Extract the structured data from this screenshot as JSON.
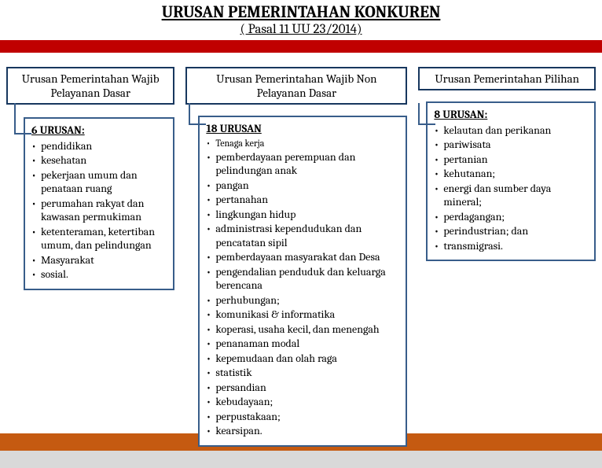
{
  "title": "URUSAN PEMERINTAHAN KONKUREN",
  "subtitle": "( Pasal 11 UU 23/2014)",
  "colors": {
    "header_border": "#17375e",
    "box_border": "#385d8a",
    "red_bar": "#c00000",
    "footer_orange": "#c55a11",
    "footer_grey": "#d9d9d9"
  },
  "columns": [
    {
      "header": "Urusan Pemerintahan Wajib Pelayanan Dasar",
      "heading": "6 URUSAN:",
      "items": [
        "pendidikan",
        "kesehatan",
        "pekerjaan umum dan penataan ruang",
        "perumahan rakyat dan kawasan permukiman",
        "ketenteraman, ketertiban umum, dan pelindungan",
        "Masyarakat",
        "sosial."
      ]
    },
    {
      "header": "Urusan Pemerintahan Wajib Non Pelayanan Dasar",
      "heading": "18 URUSAN",
      "items": [
        "Tenaga kerja",
        "pemberdayaan perempuan dan pelindungan anak",
        "pangan",
        "pertanahan",
        "lingkungan hidup",
        "administrasi kependudukan dan pencatatan sipil",
        "pemberdayaan masyarakat dan Desa",
        "pengendalian penduduk dan keluarga berencana",
        "perhubungan;",
        "komunikasi & informatika",
        "koperasi, usaha kecil, dan menengah",
        "penanaman modal",
        "kepemudaan dan olah raga",
        "statistik",
        " persandian",
        "kebudayaan;",
        "perpustakaan;",
        "kearsipan."
      ]
    },
    {
      "header": "Urusan Pemerintahan Pilihan",
      "heading": "8 URUSAN:",
      "items": [
        "kelautan dan perikanan",
        "pariwisata",
        "pertanian",
        "kehutanan;",
        "energi dan sumber daya mineral;",
        "perdagangan;",
        "perindustrian; dan",
        "transmigrasi."
      ]
    }
  ]
}
